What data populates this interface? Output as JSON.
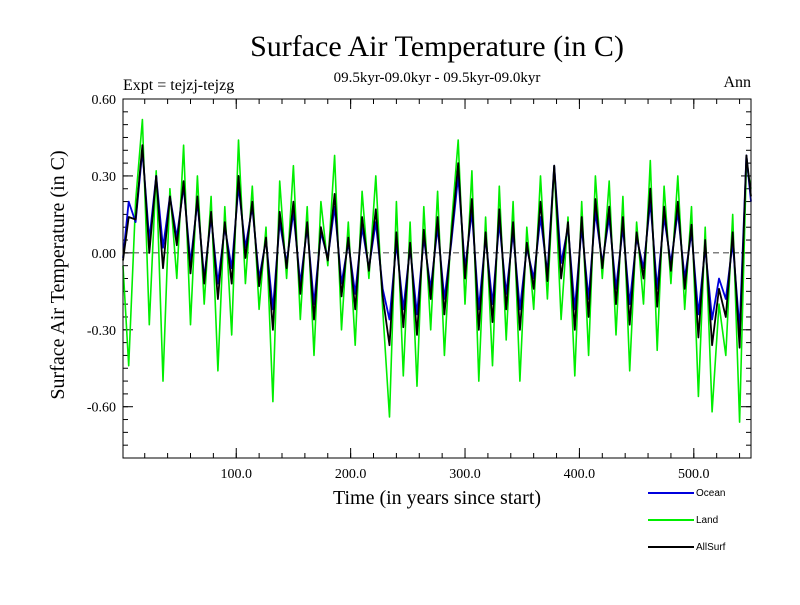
{
  "chart_data": {
    "type": "line",
    "title": "Surface Air Temperature (in C)",
    "subtitle": "09.5kyr-09.0kyr - 09.5kyr-09.0kyr",
    "expt_label": "Expt = tejzj-tejzg",
    "season_label": "Ann",
    "xlabel": "Time (in years since start)",
    "ylabel": "Surface Air Temperature (in C)",
    "xlim": [
      1,
      550
    ],
    "ylim": [
      -0.8,
      0.6
    ],
    "x_ticks": [
      100,
      200,
      300,
      400,
      500
    ],
    "x_tick_labels": [
      "100.0",
      "200.0",
      "300.0",
      "400.0",
      "500.0"
    ],
    "y_ticks": [
      0.6,
      0.3,
      0.0,
      -0.3,
      -0.6
    ],
    "y_tick_labels": [
      "0.60",
      "0.30",
      "0.00",
      "-0.30",
      "-0.60"
    ],
    "zero_line": true,
    "legend": {
      "placement": "bottom-right"
    },
    "series": [
      {
        "name": "Land",
        "color": "#00ee00",
        "x": [
          1,
          6,
          12,
          18,
          24,
          30,
          36,
          42,
          48,
          54,
          60,
          66,
          72,
          78,
          84,
          90,
          96,
          102,
          108,
          114,
          120,
          126,
          132,
          138,
          144,
          150,
          156,
          162,
          168,
          174,
          180,
          186,
          192,
          198,
          204,
          210,
          216,
          222,
          228,
          234,
          240,
          246,
          252,
          258,
          264,
          270,
          276,
          282,
          288,
          294,
          300,
          306,
          312,
          318,
          324,
          330,
          336,
          342,
          348,
          354,
          360,
          366,
          372,
          378,
          384,
          390,
          396,
          402,
          408,
          414,
          420,
          426,
          432,
          438,
          444,
          450,
          456,
          462,
          468,
          474,
          480,
          486,
          492,
          498,
          504,
          510,
          516,
          522,
          528,
          534,
          540,
          546,
          550
        ],
        "values": [
          -0.05,
          -0.44,
          0.2,
          0.52,
          -0.28,
          0.32,
          -0.5,
          0.25,
          -0.1,
          0.42,
          -0.28,
          0.3,
          -0.2,
          0.22,
          -0.46,
          0.18,
          -0.32,
          0.44,
          -0.12,
          0.26,
          -0.22,
          0.1,
          -0.58,
          0.28,
          -0.1,
          0.34,
          -0.26,
          0.18,
          -0.4,
          0.2,
          -0.05,
          0.38,
          -0.3,
          0.12,
          -0.36,
          0.24,
          -0.1,
          0.3,
          -0.22,
          -0.64,
          0.2,
          -0.48,
          0.12,
          -0.52,
          0.18,
          -0.3,
          0.24,
          -0.4,
          0.1,
          0.44,
          -0.2,
          0.32,
          -0.5,
          0.14,
          -0.44,
          0.26,
          -0.34,
          0.2,
          -0.5,
          0.1,
          -0.22,
          0.3,
          -0.18,
          0.34,
          -0.26,
          0.14,
          -0.48,
          0.2,
          -0.4,
          0.3,
          -0.1,
          0.28,
          -0.32,
          0.22,
          -0.46,
          0.12,
          -0.2,
          0.36,
          -0.38,
          0.26,
          -0.12,
          0.3,
          -0.22,
          0.18,
          -0.56,
          0.1,
          -0.62,
          -0.2,
          -0.4,
          0.15,
          -0.66,
          0.35,
          0.25
        ]
      },
      {
        "name": "Ocean",
        "color": "#0000dd",
        "x": [
          1,
          6,
          12,
          18,
          24,
          30,
          36,
          42,
          48,
          54,
          60,
          66,
          72,
          78,
          84,
          90,
          96,
          102,
          108,
          114,
          120,
          126,
          132,
          138,
          144,
          150,
          156,
          162,
          168,
          174,
          180,
          186,
          192,
          198,
          204,
          210,
          216,
          222,
          228,
          234,
          240,
          246,
          252,
          258,
          264,
          270,
          276,
          282,
          288,
          294,
          300,
          306,
          312,
          318,
          324,
          330,
          336,
          342,
          348,
          354,
          360,
          366,
          372,
          378,
          384,
          390,
          396,
          402,
          408,
          414,
          420,
          426,
          432,
          438,
          444,
          450,
          456,
          462,
          468,
          474,
          480,
          486,
          492,
          498,
          504,
          510,
          516,
          522,
          528,
          534,
          540,
          546,
          550
        ],
        "values": [
          -0.02,
          0.2,
          0.12,
          0.4,
          0.05,
          0.3,
          0.02,
          0.22,
          0.06,
          0.26,
          -0.04,
          0.2,
          -0.1,
          0.14,
          -0.12,
          0.1,
          -0.06,
          0.26,
          0.02,
          0.18,
          -0.1,
          0.05,
          -0.22,
          0.12,
          -0.04,
          0.16,
          -0.12,
          0.1,
          -0.2,
          0.08,
          -0.02,
          0.18,
          -0.12,
          0.04,
          -0.16,
          0.1,
          -0.06,
          0.12,
          -0.14,
          -0.26,
          0.04,
          -0.22,
          0.02,
          -0.24,
          0.06,
          -0.14,
          0.1,
          -0.18,
          0.04,
          0.3,
          -0.06,
          0.16,
          -0.22,
          0.06,
          -0.2,
          0.12,
          -0.16,
          0.08,
          -0.22,
          0.02,
          -0.1,
          0.14,
          -0.08,
          0.34,
          -0.04,
          0.1,
          -0.22,
          0.1,
          -0.18,
          0.16,
          -0.04,
          0.14,
          -0.14,
          0.1,
          -0.2,
          0.06,
          -0.06,
          0.2,
          -0.14,
          0.14,
          -0.04,
          0.16,
          -0.1,
          0.08,
          -0.24,
          0.02,
          -0.26,
          -0.1,
          -0.18,
          0.04,
          -0.3,
          0.38,
          0.2
        ]
      },
      {
        "name": "AllSurf",
        "color": "#000000",
        "x": [
          1,
          6,
          12,
          18,
          24,
          30,
          36,
          42,
          48,
          54,
          60,
          66,
          72,
          78,
          84,
          90,
          96,
          102,
          108,
          114,
          120,
          126,
          132,
          138,
          144,
          150,
          156,
          162,
          168,
          174,
          180,
          186,
          192,
          198,
          204,
          210,
          216,
          222,
          228,
          234,
          240,
          246,
          252,
          258,
          264,
          270,
          276,
          282,
          288,
          294,
          300,
          306,
          312,
          318,
          324,
          330,
          336,
          342,
          348,
          354,
          360,
          366,
          372,
          378,
          384,
          390,
          396,
          402,
          408,
          414,
          420,
          426,
          432,
          438,
          444,
          450,
          456,
          462,
          468,
          474,
          480,
          486,
          492,
          498,
          504,
          510,
          516,
          522,
          528,
          534,
          540,
          546,
          550
        ],
        "values": [
          -0.03,
          0.14,
          0.13,
          0.42,
          0.0,
          0.3,
          -0.06,
          0.22,
          0.03,
          0.28,
          -0.08,
          0.22,
          -0.12,
          0.16,
          -0.18,
          0.12,
          -0.12,
          0.3,
          -0.02,
          0.2,
          -0.13,
          0.06,
          -0.3,
          0.16,
          -0.06,
          0.2,
          -0.16,
          0.12,
          -0.26,
          0.1,
          -0.03,
          0.23,
          -0.17,
          0.06,
          -0.22,
          0.14,
          -0.07,
          0.17,
          -0.17,
          -0.36,
          0.08,
          -0.29,
          0.04,
          -0.32,
          0.09,
          -0.18,
          0.14,
          -0.24,
          0.06,
          0.35,
          -0.1,
          0.21,
          -0.3,
          0.08,
          -0.27,
          0.17,
          -0.22,
          0.12,
          -0.3,
          0.04,
          -0.14,
          0.2,
          -0.11,
          0.34,
          -0.1,
          0.12,
          -0.3,
          0.14,
          -0.25,
          0.21,
          -0.06,
          0.18,
          -0.2,
          0.14,
          -0.28,
          0.08,
          -0.1,
          0.25,
          -0.21,
          0.18,
          -0.07,
          0.2,
          -0.14,
          0.11,
          -0.33,
          0.05,
          -0.36,
          -0.14,
          -0.25,
          0.08,
          -0.37,
          0.38,
          0.22
        ]
      }
    ]
  }
}
